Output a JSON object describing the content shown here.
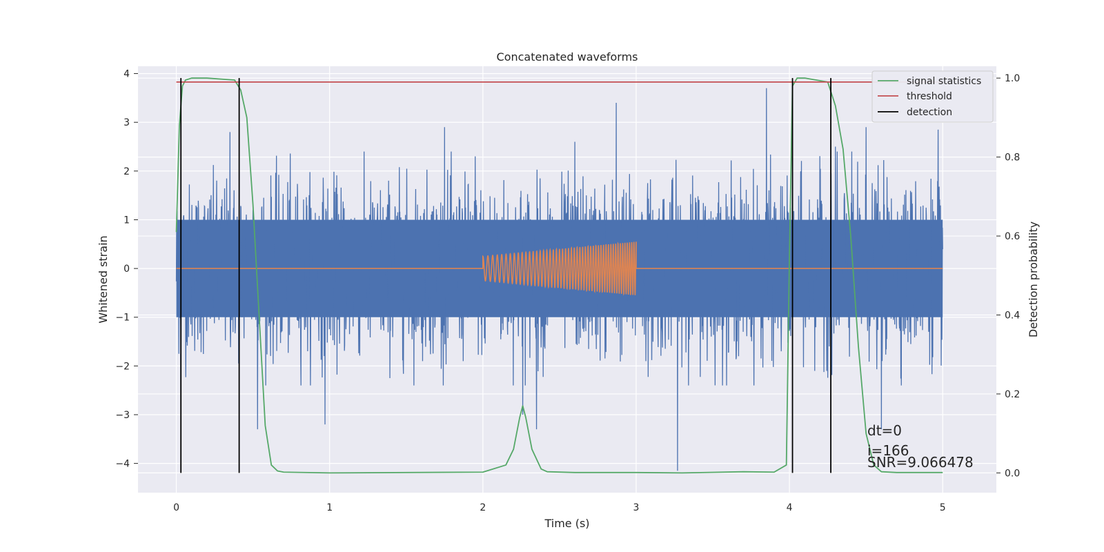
{
  "chart_data": {
    "type": "line",
    "title": "Concatenated waveforms",
    "xlabel": "Time (s)",
    "ylabel": "Whitened strain",
    "y2label": "Detection probability",
    "xlim": [
      -0.25,
      5.35
    ],
    "ylim": [
      -4.6,
      4.15
    ],
    "y2lim": [
      -0.05,
      1.03
    ],
    "x_ticks": [
      0,
      1,
      2,
      3,
      4,
      5
    ],
    "x_tick_labels": [
      "0",
      "1",
      "2",
      "3",
      "4",
      "5"
    ],
    "y_ticks": [
      4,
      3,
      2,
      1,
      0,
      -1,
      -2,
      -3,
      -4
    ],
    "y_tick_labels": [
      "4",
      "3",
      "2",
      "1",
      "0",
      "−1",
      "−2",
      "−3",
      "−4"
    ],
    "y2_ticks": [
      1.0,
      0.8,
      0.6,
      0.4,
      0.2,
      0.0
    ],
    "y2_tick_labels": [
      "1.0",
      "0.8",
      "0.6",
      "0.4",
      "0.2",
      "0.0"
    ],
    "grid": true,
    "legend_position": "top-right",
    "legend": [
      {
        "label": "signal statistics",
        "color": "#55a868"
      },
      {
        "label": "threshold",
        "color": "#c44e52"
      },
      {
        "label": "detection",
        "color": "#000000"
      }
    ],
    "series": [
      {
        "role": "noise",
        "color": "#4c72b0",
        "axis": "left",
        "x_range": [
          0,
          5
        ],
        "envelope": {
          "dense_range": [
            -1.0,
            1.0
          ],
          "peaks": [
            [
              0.03,
              -3.1
            ],
            [
              0.35,
              2.8
            ],
            [
              0.5,
              1.2
            ],
            [
              0.53,
              -3.3
            ],
            [
              0.97,
              -3.2
            ],
            [
              1.75,
              2.9
            ],
            [
              1.95,
              2.3
            ],
            [
              2.26,
              -3.0
            ],
            [
              2.35,
              -3.3
            ],
            [
              2.6,
              2.6
            ],
            [
              2.87,
              3.4
            ],
            [
              3.27,
              -4.15
            ],
            [
              3.85,
              3.7
            ],
            [
              4.3,
              2.5
            ],
            [
              4.5,
              2.9
            ],
            [
              4.6,
              -3.3
            ],
            [
              4.97,
              2.85
            ]
          ]
        }
      },
      {
        "role": "injected chirp",
        "color": "#dd8452",
        "axis": "left",
        "x": [
          0,
          2.0,
          3.0,
          5.0
        ],
        "y": [
          0,
          0.28,
          0.55,
          0
        ],
        "chirp_range": [
          2.0,
          3.0
        ],
        "amplitude_range": [
          0.25,
          0.55
        ]
      },
      {
        "name": "signal statistics",
        "color": "#55a868",
        "axis": "right",
        "x": [
          0.0,
          0.02,
          0.04,
          0.06,
          0.1,
          0.2,
          0.38,
          0.42,
          0.46,
          0.5,
          0.54,
          0.58,
          0.62,
          0.66,
          0.7,
          1.0,
          2.0,
          2.15,
          2.2,
          2.24,
          2.26,
          2.28,
          2.32,
          2.38,
          2.42,
          2.6,
          3.0,
          3.3,
          3.7,
          3.9,
          3.98,
          4.0,
          4.02,
          4.05,
          4.1,
          4.25,
          4.3,
          4.35,
          4.4,
          4.45,
          4.5,
          4.55,
          4.6,
          4.7,
          5.0
        ],
        "y": [
          0.61,
          0.88,
          0.98,
          0.995,
          1.0,
          1.0,
          0.995,
          0.97,
          0.9,
          0.68,
          0.4,
          0.12,
          0.02,
          0.005,
          0.002,
          0.0,
          0.002,
          0.02,
          0.06,
          0.14,
          0.17,
          0.14,
          0.06,
          0.01,
          0.003,
          0.001,
          0.001,
          0.0,
          0.003,
          0.002,
          0.02,
          0.55,
          0.98,
          1.0,
          1.0,
          0.99,
          0.93,
          0.82,
          0.6,
          0.32,
          0.1,
          0.02,
          0.003,
          0.001,
          0.001
        ]
      },
      {
        "name": "threshold",
        "color": "#c44e52",
        "axis": "right",
        "x": [
          0,
          5
        ],
        "y": [
          0.99,
          0.99
        ]
      }
    ],
    "detections": [
      0.03,
      0.41,
      4.02,
      4.27
    ],
    "annotations": [
      "dt=0",
      "i=166",
      "SNR=9.066478"
    ]
  }
}
